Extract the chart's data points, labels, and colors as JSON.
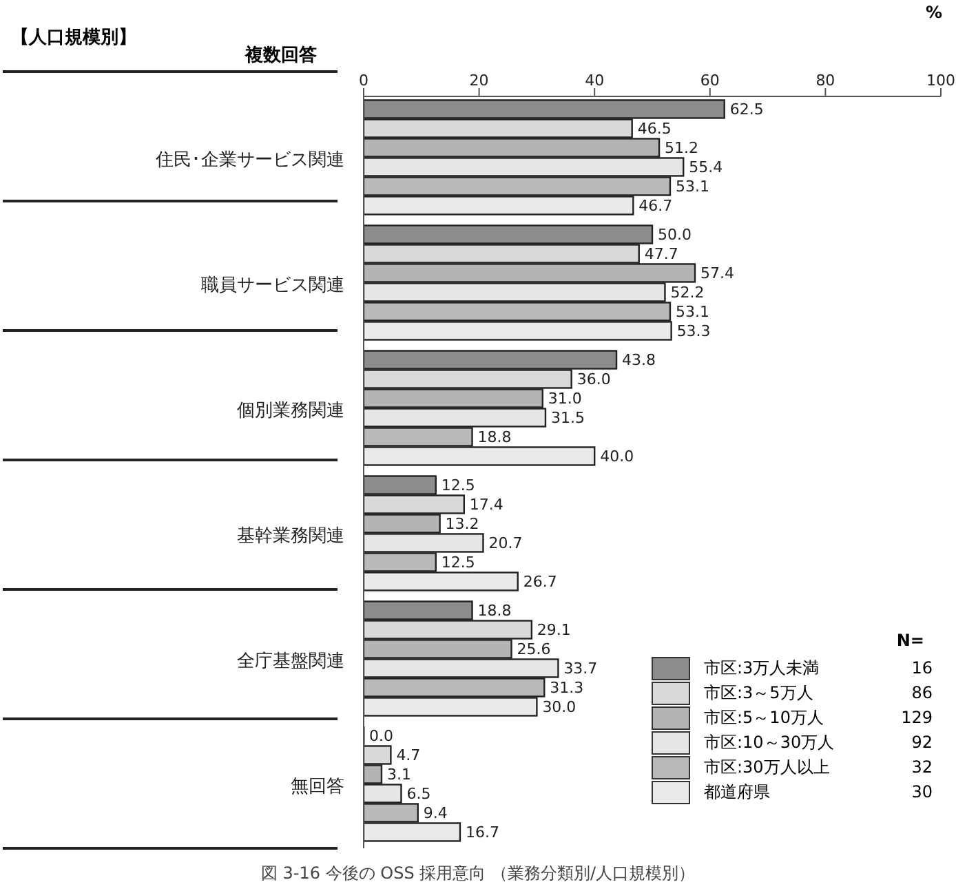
{
  "chart_data": {
    "type": "bar",
    "orientation": "horizontal",
    "title": "【人口規模別】",
    "subtitle": "複数回答",
    "xlabel": "%",
    "legend_title": "N=",
    "legend": "bottom right",
    "grid": false,
    "data_labels": true,
    "categories": [
      "住民･企業サービス関連",
      "職員サービス関連",
      "個別業務関連",
      "基幹業務関連",
      "全庁基盤関連",
      "無回答"
    ],
    "xlim": [
      0,
      100
    ],
    "xticks": [
      0,
      20,
      40,
      60,
      80,
      100
    ],
    "series": [
      {
        "name": "市区:3万人未満",
        "color": "#8c8c8c",
        "values": [
          62.5,
          50.0,
          43.8,
          12.5,
          18.8,
          0.0
        ],
        "value_labels": [
          "62.5",
          "50.0",
          "43.8",
          "12.5",
          "18.8",
          "0.0"
        ]
      },
      {
        "name": "市区:3～5万人",
        "color": "#d9d9d9",
        "values": [
          46.5,
          47.7,
          36.0,
          17.4,
          29.1,
          4.7
        ],
        "value_labels": [
          "46.5",
          "47.7",
          "36.0",
          "17.4",
          "29.1",
          "4.7"
        ]
      },
      {
        "name": "市区:5～10万人",
        "color": "#b4b4b4",
        "values": [
          51.2,
          57.4,
          31.0,
          13.2,
          25.6,
          3.1
        ],
        "value_labels": [
          "51.2",
          "57.4",
          "31.0",
          "13.2",
          "25.6",
          "3.1"
        ]
      },
      {
        "name": "市区:10～30万人",
        "color": "#e6e6e6",
        "values": [
          55.4,
          52.2,
          31.5,
          20.7,
          33.7,
          6.5
        ],
        "value_labels": [
          "55.4",
          "52.2",
          "31.5",
          "20.7",
          "33.7",
          "6.5"
        ]
      },
      {
        "name": "市区:30万人以上",
        "color": "#b9b9b9",
        "values": [
          53.1,
          53.1,
          18.8,
          12.5,
          31.3,
          9.4
        ],
        "value_labels": [
          "53.1",
          "53.1",
          "18.8",
          "12.5",
          "31.3",
          "9.4"
        ]
      },
      {
        "name": "都道府県",
        "color": "#eaeaea",
        "values": [
          46.7,
          53.3,
          40.0,
          26.7,
          30.0,
          16.7
        ],
        "value_labels": [
          "46.7",
          "53.3",
          "40.0",
          "26.7",
          "30.0",
          "16.7"
        ]
      }
    ],
    "annotations": [
      "16",
      "86",
      "129",
      "92",
      "32",
      "30",
      "図 3-16 今後の OSS 採用意向 （業務分類別/人口規模別）"
    ]
  }
}
